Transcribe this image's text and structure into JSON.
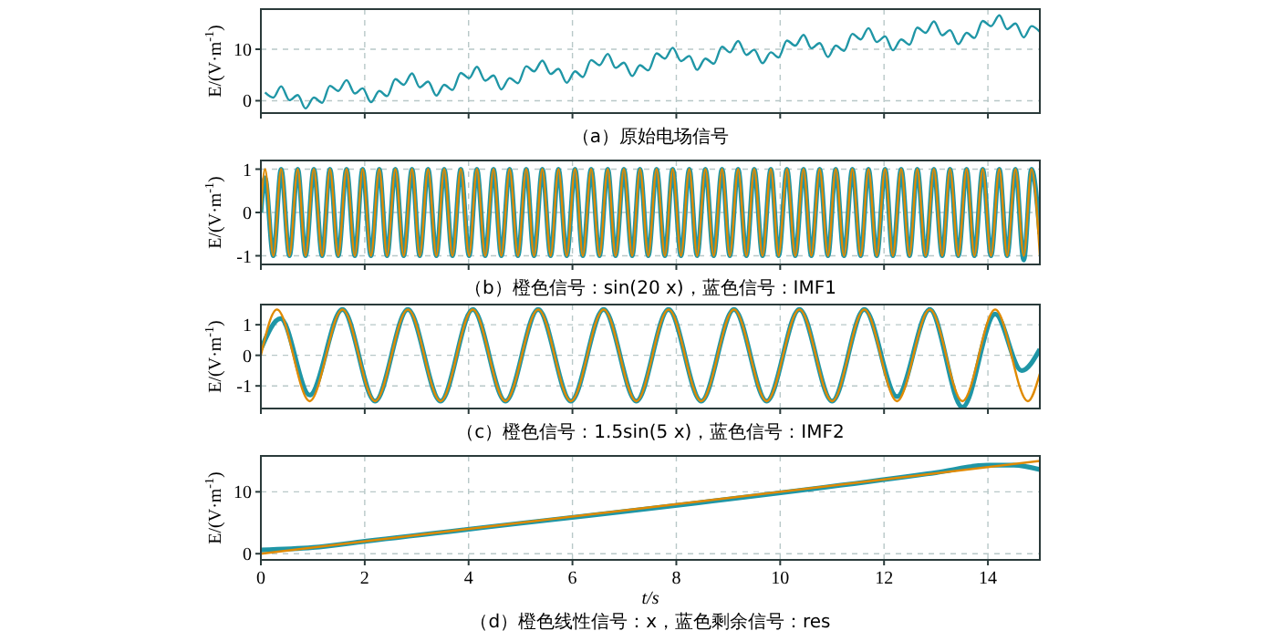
{
  "chart_data": [
    {
      "type": "line",
      "title": "（a）原始电场信号",
      "ylabel": "E/(V·m$^{-1}$)",
      "xlim": [
        0,
        15
      ],
      "ylim": [
        -2.4,
        17.8
      ],
      "xticks": [
        0,
        2,
        4,
        6,
        8,
        10,
        12,
        14
      ],
      "yticks": [
        0,
        10
      ],
      "grid": true,
      "tick_labels": "y",
      "line_style": "solid",
      "marker": "none",
      "x": [
        0.08,
        0.24,
        0.39,
        0.55,
        0.71,
        0.86,
        1.02,
        1.18,
        1.33,
        1.49,
        1.65,
        1.81,
        1.96,
        2.12,
        2.28,
        2.43,
        2.59,
        2.75,
        2.91,
        3.06,
        3.22,
        3.38,
        3.53,
        3.69,
        3.85,
        4.01,
        4.16,
        4.32,
        4.48,
        4.63,
        4.79,
        4.95,
        5.11,
        5.26,
        5.42,
        5.58,
        5.73,
        5.89,
        6.05,
        6.2,
        6.36,
        6.52,
        6.68,
        6.83,
        6.99,
        7.15,
        7.3,
        7.46,
        7.62,
        7.78,
        7.93,
        8.09,
        8.25,
        8.4,
        8.56,
        8.72,
        8.88,
        9.03,
        9.19,
        9.35,
        9.5,
        9.66,
        9.82,
        9.97,
        10.13,
        10.29,
        10.45,
        10.6,
        10.76,
        10.92,
        11.07,
        11.23,
        11.39,
        11.55,
        11.7,
        11.86,
        12.02,
        12.17,
        12.33,
        12.49,
        12.64,
        12.8,
        12.96,
        13.12,
        13.27,
        13.43,
        13.59,
        13.74,
        13.9,
        14.06,
        14.22,
        14.37,
        14.53,
        14.69,
        14.84,
        15.0
      ],
      "series": [
        {
          "color": "#1f96a6",
          "values": [
            1.6,
            0.6,
            2.8,
            0.1,
            1.1,
            -1.5,
            0.6,
            -0.4,
            2.9,
            1.9,
            4.0,
            1.4,
            2.4,
            -0.3,
            1.9,
            0.9,
            4.2,
            3.1,
            5.3,
            2.6,
            3.7,
            1.0,
            3.1,
            2.1,
            5.4,
            4.4,
            6.6,
            3.9,
            4.9,
            2.2,
            4.4,
            3.4,
            6.7,
            5.7,
            7.8,
            5.2,
            6.2,
            3.5,
            5.7,
            4.6,
            7.9,
            6.9,
            9.1,
            6.4,
            7.4,
            4.8,
            6.9,
            5.9,
            9.2,
            8.2,
            10.3,
            7.7,
            8.7,
            6.0,
            8.2,
            7.2,
            10.5,
            9.4,
            11.6,
            8.9,
            9.9,
            7.3,
            9.4,
            8.4,
            11.7,
            10.7,
            12.8,
            10.2,
            11.2,
            8.5,
            10.7,
            9.7,
            13.0,
            11.9,
            14.1,
            11.4,
            12.5,
            9.8,
            11.9,
            10.9,
            14.2,
            13.2,
            15.4,
            12.7,
            13.7,
            11.0,
            13.2,
            12.2,
            15.5,
            14.5,
            16.6,
            13.9,
            15.0,
            12.3,
            14.5,
            13.4
          ]
        }
      ]
    },
    {
      "type": "line",
      "title": "（b）橙色信号：sin(20 x)，蓝色信号：IMF1",
      "ylabel": "E/(V·m$^{-1}$)",
      "xlim": [
        0,
        15
      ],
      "ylim": [
        -1.2,
        1.2
      ],
      "xticks": [
        0,
        2,
        4,
        6,
        8,
        10,
        12,
        14
      ],
      "yticks": [
        -1,
        0,
        1
      ],
      "grid": true,
      "tick_labels": "y",
      "line_style": "solid",
      "marker": "none",
      "x": [
        0,
        0.08,
        0.24,
        0.39,
        0.55,
        0.71,
        0.86,
        1.02,
        1.18,
        1.33,
        1.49,
        1.65,
        1.81,
        1.96,
        2.12,
        2.28,
        2.43,
        2.59,
        2.75,
        2.91,
        3.06,
        3.22,
        3.38,
        3.53,
        3.69,
        3.85,
        4.01,
        4.16,
        4.32,
        4.48,
        4.63,
        4.79,
        4.95,
        5.11,
        5.26,
        5.42,
        5.58,
        5.73,
        5.89,
        6.05,
        6.2,
        6.36,
        6.52,
        6.68,
        6.83,
        6.99,
        7.15,
        7.3,
        7.46,
        7.62,
        7.78,
        7.93,
        8.09,
        8.25,
        8.4,
        8.56,
        8.72,
        8.88,
        9.03,
        9.19,
        9.35,
        9.5,
        9.66,
        9.82,
        9.97,
        10.13,
        10.29,
        10.45,
        10.6,
        10.76,
        10.92,
        11.07,
        11.23,
        11.39,
        11.55,
        11.7,
        11.86,
        12.02,
        12.17,
        12.33,
        12.49,
        12.64,
        12.8,
        12.96,
        13.12,
        13.27,
        13.43,
        13.59,
        13.74,
        13.9,
        14.06,
        14.22,
        14.37,
        14.53,
        14.69,
        14.84,
        15.0
      ],
      "series": [
        {
          "color": "#1f96a6",
          "values": [
            0,
            0.8,
            -1,
            1,
            -1,
            1,
            -1,
            1,
            -1,
            1,
            -1,
            1,
            -1,
            1,
            -1,
            1,
            -1,
            1,
            -1,
            1,
            -1,
            1,
            -1,
            1,
            -1,
            1,
            -1,
            1,
            -1,
            1,
            -1,
            1,
            -1,
            1,
            -1,
            1,
            -1,
            1,
            -1,
            1,
            -1,
            1,
            -1,
            1,
            -1,
            1,
            -1,
            1,
            -1,
            1,
            -1,
            1,
            -1,
            1,
            -1,
            1,
            -1,
            1,
            -1,
            1,
            -1,
            1,
            -1,
            1,
            -1,
            1,
            -1,
            1,
            -1,
            1,
            -1,
            1,
            -1,
            1,
            -1,
            1,
            -1,
            1,
            -1,
            1,
            -1,
            1,
            -1,
            1,
            -1,
            1,
            -1,
            1,
            -1,
            1,
            -1,
            1,
            -1,
            1,
            -1.1,
            1,
            -0.5
          ]
        },
        {
          "color": "#e08a00",
          "values": [
            0,
            1,
            -1,
            1,
            -1,
            1,
            -1,
            1,
            -1,
            1,
            -1,
            1,
            -1,
            1,
            -1,
            1,
            -1,
            1,
            -1,
            1,
            -1,
            1,
            -1,
            1,
            -1,
            1,
            -1,
            1,
            -1,
            1,
            -1,
            1,
            -1,
            1,
            -1,
            1,
            -1,
            1,
            -1,
            1,
            -1,
            1,
            -1,
            1,
            -1,
            1,
            -1,
            1,
            -1,
            1,
            -1,
            1,
            -1,
            1,
            -1,
            1,
            -1,
            1,
            -1,
            1,
            -1,
            1,
            -1,
            1,
            -1,
            1,
            -1,
            1,
            -1,
            1,
            -1,
            1,
            -1,
            1,
            -1,
            1,
            -1,
            1,
            -1,
            1,
            -1,
            1,
            -1,
            1,
            -1,
            1,
            -1,
            1,
            -1,
            1,
            -1,
            1,
            -1,
            1,
            -1,
            1,
            -1
          ]
        }
      ]
    },
    {
      "type": "line",
      "title": "（c）橙色信号：1.5sin(5 x)，蓝色信号：IMF2",
      "ylabel": "E/(V·m$^{-1}$)",
      "xlim": [
        0,
        15
      ],
      "ylim": [
        -1.74,
        1.66
      ],
      "xticks": [
        0,
        2,
        4,
        6,
        8,
        10,
        12,
        14
      ],
      "yticks": [
        -1,
        0,
        1
      ],
      "grid": true,
      "tick_labels": "y",
      "line_style": "solid",
      "marker": "none",
      "series": [
        {
          "color": "#1f96a6",
          "x": [
            0,
            0.38,
            0.94,
            1.57,
            2.2,
            2.83,
            3.46,
            4.08,
            4.71,
            5.34,
            5.97,
            6.6,
            7.23,
            7.85,
            8.48,
            9.11,
            9.74,
            10.37,
            11.0,
            11.62,
            12.25,
            12.88,
            13.51,
            14.14,
            14.65,
            15
          ],
          "values": [
            0.2,
            1.2,
            -1.3,
            1.5,
            -1.5,
            1.5,
            -1.5,
            1.5,
            -1.5,
            1.5,
            -1.5,
            1.5,
            -1.5,
            1.5,
            -1.5,
            1.5,
            -1.5,
            1.5,
            -1.5,
            1.5,
            -1.35,
            1.5,
            -1.7,
            1.35,
            -0.5,
            0.2
          ]
        },
        {
          "color": "#e08a00",
          "x": [
            0,
            0.31,
            0.94,
            1.57,
            2.2,
            2.83,
            3.46,
            4.08,
            4.71,
            5.34,
            5.97,
            6.6,
            7.23,
            7.85,
            8.48,
            9.11,
            9.74,
            10.37,
            11.0,
            11.62,
            12.25,
            12.88,
            13.51,
            14.14,
            14.77,
            15
          ],
          "values": [
            0,
            1.5,
            -1.5,
            1.5,
            -1.5,
            1.5,
            -1.5,
            1.5,
            -1.5,
            1.5,
            -1.5,
            1.5,
            -1.5,
            1.5,
            -1.5,
            1.5,
            -1.5,
            1.5,
            -1.5,
            1.5,
            -1.5,
            1.5,
            -1.5,
            1.5,
            -1.5,
            -0.6
          ]
        }
      ]
    },
    {
      "type": "line",
      "title": "（d）橙色线性信号：x，蓝色剩余信号：res",
      "xlabel": "t/s",
      "ylabel": "E/(V·m$^{-1}$)",
      "xlim": [
        0,
        15
      ],
      "ylim": [
        -1,
        15.8
      ],
      "xticks": [
        0,
        2,
        4,
        6,
        8,
        10,
        12,
        14
      ],
      "yticks": [
        0,
        10
      ],
      "grid": true,
      "line_style": "solid",
      "marker": "none",
      "series": [
        {
          "color": "#1f96a6",
          "x": [
            0,
            1,
            2,
            13,
            14,
            14.5,
            15
          ],
          "values": [
            0.6,
            1.0,
            2,
            13.1,
            14.3,
            14.3,
            13.6
          ]
        },
        {
          "color": "#e08a00",
          "x": [
            0,
            15
          ],
          "values": [
            0,
            15
          ]
        }
      ]
    }
  ]
}
